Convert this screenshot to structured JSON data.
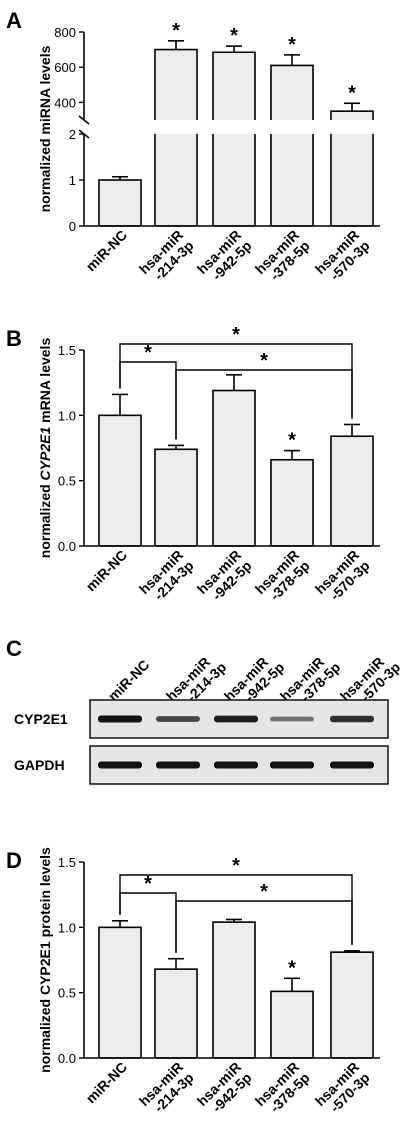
{
  "chart_data": [
    {
      "panel": "A",
      "type": "bar",
      "categories": [
        "miR-NC",
        "hsa-miR\n-214-3p",
        "hsa-miR\n-942-5p",
        "hsa-miR\n-378-5p",
        "hsa-miR\n-570-3p"
      ],
      "values": [
        1.0,
        700,
        685,
        610,
        350
      ],
      "errors": [
        0.07,
        50,
        35,
        60,
        45
      ],
      "significance": [
        "",
        "*",
        "*",
        "*",
        "*"
      ],
      "ylabel": "normalized miRNA levels",
      "axis_break": true,
      "lower_ticks": [
        0,
        1,
        2
      ],
      "upper_ticks": [
        400,
        600,
        800
      ]
    },
    {
      "panel": "B",
      "type": "bar",
      "categories": [
        "miR-NC",
        "hsa-miR\n-214-3p",
        "hsa-miR\n-942-5p",
        "hsa-miR\n-378-5p",
        "hsa-miR\n-570-3p"
      ],
      "values": [
        1.0,
        0.74,
        1.19,
        0.66,
        0.84
      ],
      "errors": [
        0.16,
        0.03,
        0.12,
        0.07,
        0.09
      ],
      "significance": [
        "",
        "",
        "",
        "*",
        ""
      ],
      "brackets": [
        {
          "from": 0,
          "to": 1,
          "label": "*"
        },
        {
          "from": 1,
          "to": 4,
          "label": "*"
        },
        {
          "from": 0,
          "to": 4,
          "label": "*"
        }
      ],
      "ylabel_parts": [
        "normalized ",
        "CYP2E1",
        " mRNA levels"
      ],
      "ylim": [
        0,
        1.5
      ],
      "ticks": [
        "0.0",
        "0.5",
        "1.0",
        "1.5"
      ]
    },
    {
      "panel": "D",
      "type": "bar",
      "categories": [
        "miR-NC",
        "hsa-miR\n-214-3p",
        "hsa-miR\n-942-5p",
        "hsa-miR\n-378-5p",
        "hsa-miR\n-570-3p"
      ],
      "values": [
        1.0,
        0.68,
        1.04,
        0.51,
        0.81
      ],
      "errors": [
        0.05,
        0.08,
        0.02,
        0.1,
        0.01
      ],
      "significance": [
        "",
        "",
        "",
        "*",
        ""
      ],
      "brackets": [
        {
          "from": 0,
          "to": 1,
          "label": "*"
        },
        {
          "from": 1,
          "to": 4,
          "label": "*"
        },
        {
          "from": 0,
          "to": 4,
          "label": "*"
        }
      ],
      "ylabel": "normalized CYP2E1 protein levels",
      "ylim": [
        0,
        1.5
      ],
      "ticks": [
        "0.0",
        "0.5",
        "1.0",
        "1.5"
      ]
    }
  ],
  "blot": {
    "panel": "C",
    "lanes": [
      "miR-NC",
      "hsa-miR\n-214-3p",
      "hsa-miR\n-942-5p",
      "hsa-miR\n-378-5p",
      "hsa-miR\n-570-3p"
    ],
    "rows": [
      {
        "label": "CYP2E1",
        "intensity": [
          1.0,
          0.7,
          0.95,
          0.45,
          0.85
        ]
      },
      {
        "label": "GAPDH",
        "intensity": [
          1.0,
          1.0,
          1.0,
          1.0,
          1.0
        ]
      }
    ]
  }
}
